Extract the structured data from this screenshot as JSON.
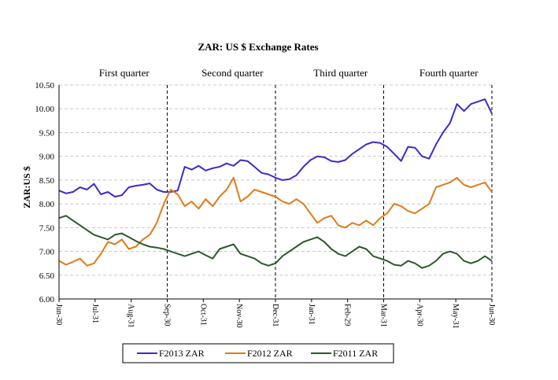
{
  "chart_data": {
    "type": "line",
    "title": "ZAR: US $ Exchange Rates",
    "ylabel": "ZAR:US $",
    "xlabel": "",
    "ylim": [
      6.0,
      10.5
    ],
    "yticks": [
      "6.00",
      "6.50",
      "7.00",
      "7.50",
      "8.00",
      "8.50",
      "9.00",
      "9.50",
      "10.00",
      "10.50"
    ],
    "x_tick_labels": [
      "Jun-30",
      "Jul-31",
      "Aug-31",
      "Sep-30",
      "Oct-31",
      "Nov-30",
      "Dec-31",
      "Jan-31",
      "Feb-29",
      "Mar-31",
      "Apr-30",
      "May-31",
      "Jun-30"
    ],
    "quarter_labels": [
      "First quarter",
      "Second quarter",
      "Third quarter",
      "Fourth quarter"
    ],
    "quarter_boundaries": [
      3,
      6,
      9,
      12
    ],
    "grid": true,
    "legend_position": "bottom",
    "series": [
      {
        "name": "F2013 ZAR",
        "color": "#3b2cc9",
        "values": [
          8.28,
          8.22,
          8.25,
          8.35,
          8.3,
          8.42,
          8.2,
          8.25,
          8.15,
          8.18,
          8.35,
          8.38,
          8.4,
          8.43,
          8.3,
          8.25,
          8.25,
          8.28,
          8.78,
          8.72,
          8.8,
          8.7,
          8.75,
          8.78,
          8.85,
          8.8,
          8.92,
          8.9,
          8.78,
          8.65,
          8.62,
          8.55,
          8.5,
          8.52,
          8.6,
          8.78,
          8.92,
          9.0,
          8.98,
          8.9,
          8.88,
          8.92,
          9.05,
          9.15,
          9.25,
          9.3,
          9.28,
          9.2,
          9.05,
          8.9,
          9.2,
          9.18,
          9.0,
          8.95,
          9.25,
          9.5,
          9.7,
          10.1,
          9.95,
          10.1,
          10.15,
          10.2,
          9.9
        ]
      },
      {
        "name": "F2012 ZAR",
        "color": "#e07b1a",
        "values": [
          6.8,
          6.72,
          6.78,
          6.85,
          6.7,
          6.75,
          6.95,
          7.2,
          7.15,
          7.25,
          7.05,
          7.1,
          7.25,
          7.35,
          7.6,
          8.0,
          8.3,
          8.2,
          7.95,
          8.05,
          7.9,
          8.1,
          7.95,
          8.15,
          8.3,
          8.55,
          8.05,
          8.15,
          8.3,
          8.25,
          8.2,
          8.15,
          8.05,
          8.0,
          8.1,
          8.0,
          7.8,
          7.6,
          7.7,
          7.75,
          7.55,
          7.5,
          7.6,
          7.55,
          7.65,
          7.55,
          7.7,
          7.8,
          8.0,
          7.95,
          7.85,
          7.8,
          7.9,
          8.0,
          8.35,
          8.4,
          8.45,
          8.55,
          8.4,
          8.35,
          8.4,
          8.45,
          8.25
        ]
      },
      {
        "name": "F2011 ZAR",
        "color": "#2a5a2a",
        "values": [
          7.7,
          7.75,
          7.65,
          7.55,
          7.45,
          7.35,
          7.3,
          7.25,
          7.35,
          7.38,
          7.3,
          7.22,
          7.15,
          7.1,
          7.08,
          7.05,
          7.0,
          6.95,
          6.9,
          6.95,
          7.0,
          6.92,
          6.85,
          7.05,
          7.1,
          7.15,
          6.95,
          6.9,
          6.85,
          6.75,
          6.7,
          6.75,
          6.9,
          7.0,
          7.1,
          7.2,
          7.25,
          7.3,
          7.2,
          7.05,
          6.95,
          6.9,
          7.0,
          7.1,
          7.05,
          6.9,
          6.85,
          6.8,
          6.72,
          6.7,
          6.8,
          6.75,
          6.65,
          6.7,
          6.8,
          6.95,
          7.0,
          6.95,
          6.8,
          6.75,
          6.8,
          6.9,
          6.8
        ]
      }
    ]
  }
}
